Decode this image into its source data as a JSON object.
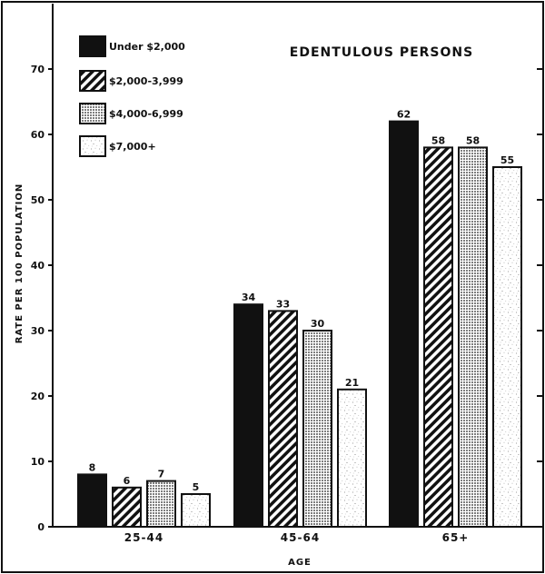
{
  "chart_data": {
    "type": "bar",
    "title": "EDENTULOUS PERSONS",
    "xlabel": "AGE",
    "ylabel": "RATE PER 100 POPULATION",
    "categories": [
      "25-44",
      "45-64",
      "65+"
    ],
    "series": [
      {
        "name": "Under $2,000",
        "values": [
          8,
          34,
          62
        ],
        "pattern": "solid"
      },
      {
        "name": "$2,000-3,999",
        "values": [
          6,
          33,
          58
        ],
        "pattern": "diagonal"
      },
      {
        "name": "$4,000-6,999",
        "values": [
          7,
          30,
          58
        ],
        "pattern": "dots"
      },
      {
        "name": "$7,000+",
        "values": [
          5,
          21,
          55
        ],
        "pattern": "speckle"
      }
    ],
    "yticks": [
      0,
      10,
      20,
      30,
      40,
      50,
      60,
      70
    ],
    "ylim": [
      0,
      80
    ],
    "legend_position": "top-left",
    "grid": false,
    "colors": {
      "ink": "#111111",
      "paper": "#ffffff"
    }
  }
}
